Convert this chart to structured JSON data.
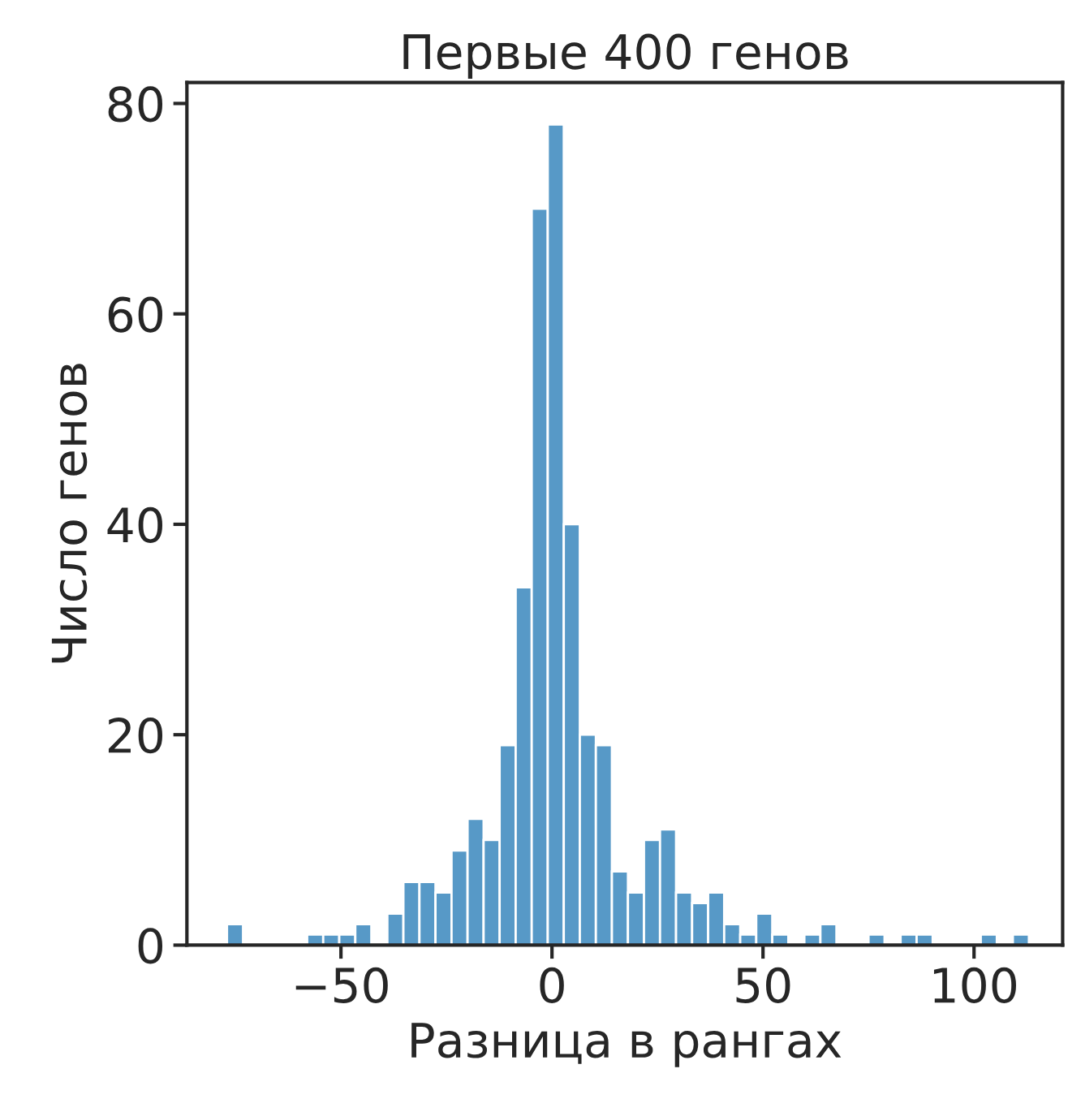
{
  "chart_data": {
    "type": "histogram",
    "title": "Первые 400 генов",
    "xlabel": "Разница в рангах",
    "ylabel": "Число генов",
    "bins": [
      -77.0,
      -73.2,
      -69.4,
      -65.6,
      -61.8,
      -58.0,
      -54.2,
      -50.4,
      -46.6,
      -42.8,
      -39.0,
      -35.2,
      -31.4,
      -27.6,
      -23.8,
      -20.0,
      -16.2,
      -12.4,
      -8.6,
      -4.8,
      -1.0,
      2.8,
      6.6,
      10.4,
      14.2,
      18.0,
      21.8,
      25.6,
      29.4,
      33.2,
      37.0,
      40.8,
      44.6,
      48.4,
      52.2,
      56.0,
      59.8,
      63.6,
      67.4,
      71.2,
      75.0,
      78.8,
      82.6,
      86.4,
      90.2,
      94.0,
      97.8,
      101.6,
      105.4,
      109.2,
      113.0
    ],
    "values": [
      2,
      0,
      0,
      0,
      0,
      1,
      1,
      1,
      2,
      0,
      3,
      6,
      6,
      5,
      9,
      12,
      10,
      19,
      34,
      70,
      78,
      40,
      20,
      19,
      7,
      5,
      10,
      11,
      5,
      4,
      5,
      2,
      1,
      3,
      1,
      0,
      1,
      2,
      0,
      0,
      1,
      0,
      1,
      1,
      0,
      0,
      0,
      1,
      0,
      1
    ],
    "color": "#5799c7",
    "xlim": [
      -86.5,
      121
    ],
    "ylim": [
      0,
      82
    ],
    "xticks": [
      {
        "value": -50,
        "label": "−50"
      },
      0,
      50,
      100
    ],
    "yticks": [
      0,
      20,
      40,
      60,
      80
    ],
    "grid": false
  }
}
